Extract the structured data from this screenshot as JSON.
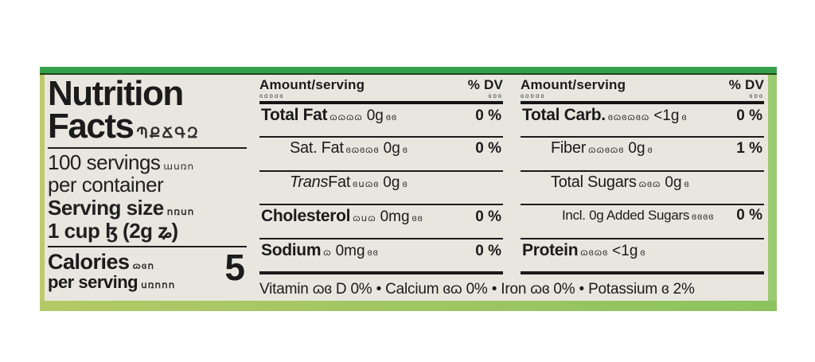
{
  "colors": {
    "label_background": "#e9e6e0",
    "top_bar_green": "#35a04a",
    "bottom_bar_green": "#8cc35f",
    "left_bar_green": "#bdca68",
    "right_bar_green": "#9bca72",
    "text": "#1b1b1b"
  },
  "left": {
    "title1": "Nutrition",
    "title2": "Facts",
    "title2_suffix": "ՊՔՃԳԶ",
    "servings_line1": "100 servings",
    "servings_suffix": "ասռո",
    "servings_line2": "per container",
    "serving_size_label": "Serving size",
    "serving_size_suffix": "ոռսո",
    "serving_size_value": "1 cup ɮ (2g ʑ)",
    "calories_label": "Calories",
    "calories_suffix": "ɷɞո",
    "per_serving_label": "per serving",
    "per_serving_suffix": "սռոոո",
    "calories_value": "5"
  },
  "panels": [
    {
      "header": {
        "amount": "Amount/serving",
        "amount_sub": "ɞɑɒɑɞ",
        "dv": "% DV",
        "dv_sub": "ɞɒɞ"
      },
      "rows": [
        {
          "label": "Total Fat",
          "garble": "ɷɷɷɷ",
          "value": "0g",
          "vsuffix": "ɞɞ",
          "dv": "0 %"
        },
        {
          "label": "Sat. Fat",
          "garble": "ɞɷɞɷɞ",
          "value": "0g",
          "vsuffix": "ɞ",
          "dv": "0 %"
        },
        {
          "label_italic": "Trans",
          "label": " Fat",
          "garble": "ɞսɷɞ",
          "value": "0g",
          "vsuffix": "ɞ",
          "dv": ""
        },
        {
          "label": "Cholesterol",
          "garble": "ɷսɷ",
          "value": "0mg",
          "vsuffix": "ɞɞ",
          "dv": "0 %"
        },
        {
          "label": "Sodium",
          "garble": "ɷ",
          "value": "0mg",
          "vsuffix": "ɞɞ",
          "dv": "0 %"
        }
      ]
    },
    {
      "header": {
        "amount": "Amount/serving",
        "amount_sub": "ɞɑɒɑɞ",
        "dv": "% DV",
        "dv_sub": "ɞɒɞ"
      },
      "rows": [
        {
          "label": "Total Carb.",
          "garble": "ɞɷɞɷɞɷ",
          "value": "<1g",
          "vsuffix": "ɞ",
          "dv": "0 %"
        },
        {
          "label": "Fiber",
          "garble": "ɷɷɞɷɞ",
          "value": "0g",
          "vsuffix": "ɞ",
          "dv": "1 %"
        },
        {
          "label": "Total Sugars",
          "garble": "ɷɞɷ",
          "value": "0g",
          "vsuffix": "ɞ",
          "dv": ""
        },
        {
          "label": "Incl. 0g Added Sugars",
          "garble": "ɞɞɞɞ",
          "value": "",
          "vsuffix": "",
          "dv": "0 %"
        },
        {
          "label": "Protein",
          "garble": "ɷɞɷɞ",
          "value": "<1g",
          "vsuffix": "ɞ",
          "dv": ""
        }
      ]
    }
  ],
  "footer": {
    "text": "Vitamin ɷɞ D 0%  •  Calcium ɞɷ 0%  •  Iron ɷɞ 0%  •  Potassium ɞ 2%"
  }
}
